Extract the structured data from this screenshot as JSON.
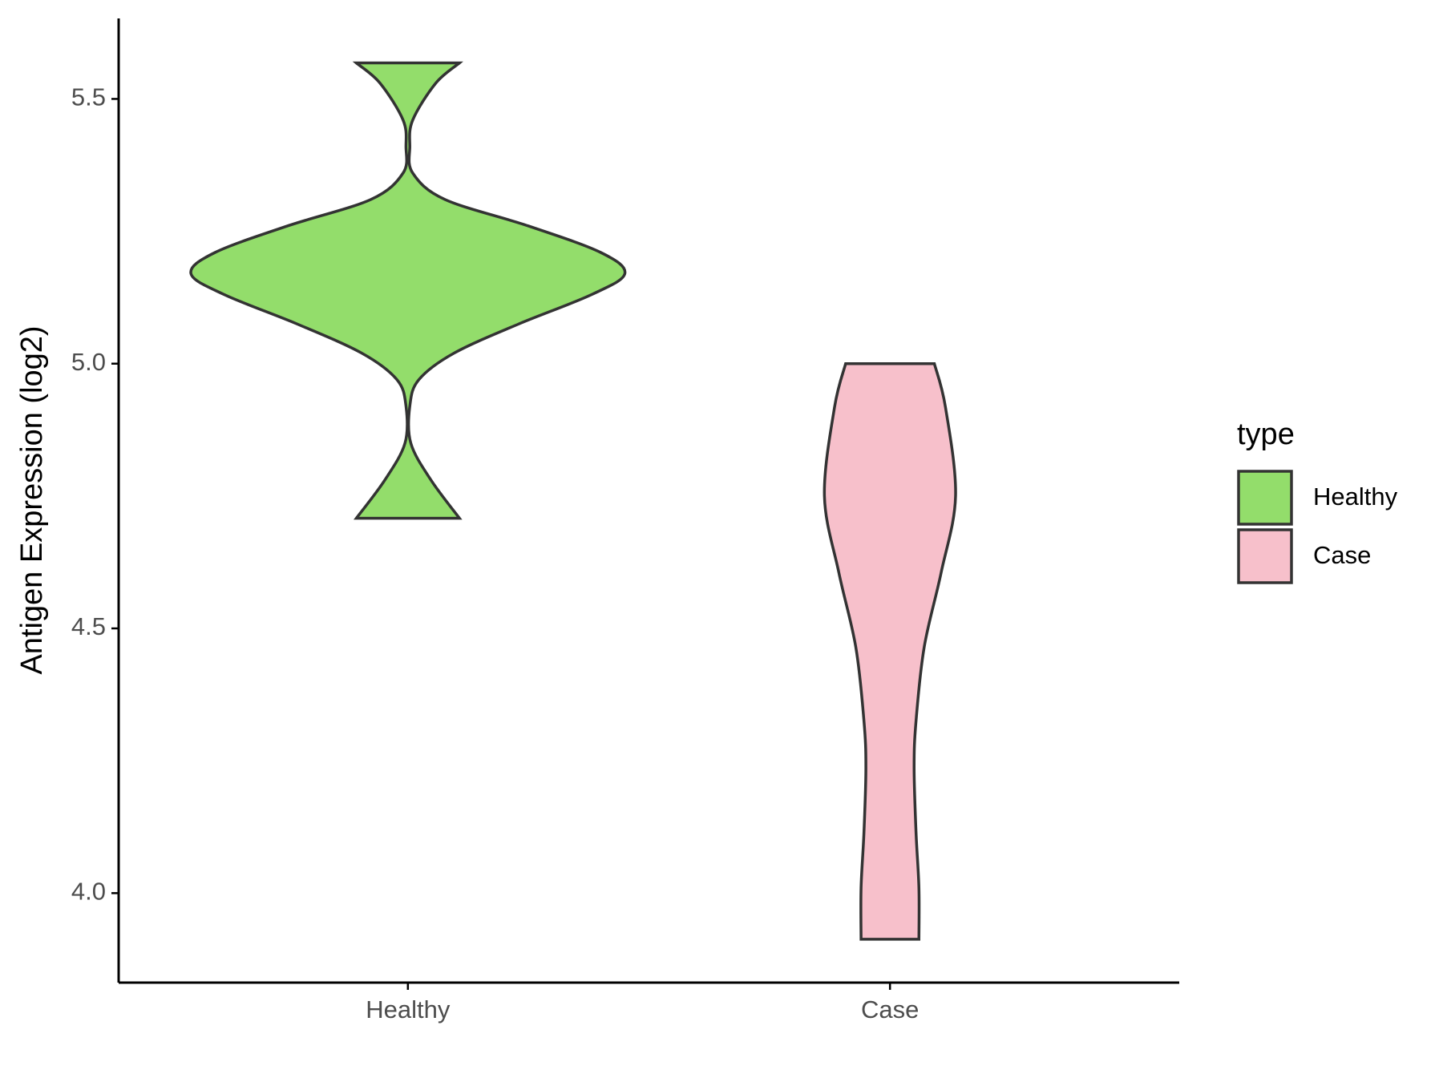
{
  "chart_data": {
    "type": "violin",
    "y_label": "Antigen Expression (log2)",
    "categories": [
      "Healthy",
      "Case"
    ],
    "legend_title": "type",
    "series": [
      {
        "name": "Healthy",
        "color": "#93dd6b",
        "y": [
          5.568,
          5.53,
          5.46,
          5.41,
          5.36,
          5.31,
          5.26,
          5.21,
          5.17,
          5.13,
          5.075,
          5.02,
          4.97,
          4.92,
          4.85,
          4.78,
          4.708
        ],
        "half_width": [
          0.107,
          0.058,
          0.01,
          0.004,
          0.01,
          0.077,
          0.25,
          0.4,
          0.45,
          0.38,
          0.23,
          0.096,
          0.023,
          0.004,
          0.006,
          0.048,
          0.107
        ]
      },
      {
        "name": "Case",
        "color": "#f7c0cb",
        "y": [
          5.0,
          4.918,
          4.75,
          4.605,
          4.465,
          4.325,
          4.237,
          4.115,
          4.01,
          3.913
        ],
        "half_width": [
          0.092,
          0.115,
          0.136,
          0.106,
          0.071,
          0.054,
          0.05,
          0.054,
          0.06,
          0.06
        ]
      }
    ],
    "ylim": [
      3.831,
      5.652
    ],
    "yticks": [
      {
        "value": 4.0,
        "label": "4.0"
      },
      {
        "value": 4.5,
        "label": "4.5"
      },
      {
        "value": 5.0,
        "label": "5.0"
      },
      {
        "value": 5.5,
        "label": "5.5"
      }
    ],
    "outline_color": "#333333"
  }
}
